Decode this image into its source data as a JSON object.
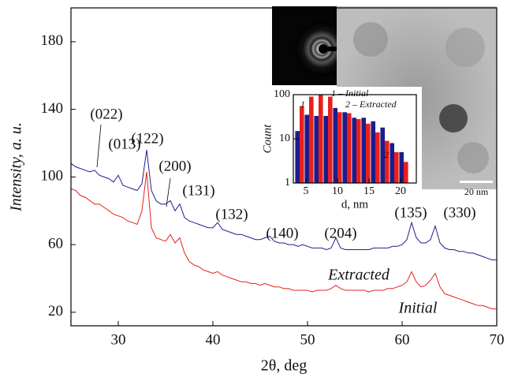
{
  "chart_data": [
    {
      "type": "line",
      "x_label": "2θ, deg",
      "y_label": "Intensity, a. u.",
      "x": [
        25,
        25.5,
        26,
        26.5,
        27,
        27.5,
        28,
        28.5,
        29,
        29.5,
        30,
        30.5,
        31,
        31.5,
        32,
        32.5,
        33,
        33.5,
        34,
        34.5,
        35,
        35.5,
        36,
        36.5,
        37,
        37.5,
        38,
        38.5,
        39,
        39.5,
        40,
        40.5,
        41,
        41.5,
        42,
        42.5,
        43,
        43.5,
        44,
        44.5,
        45,
        45.5,
        46,
        46.5,
        47,
        47.5,
        48,
        48.5,
        49,
        49.5,
        50,
        50.5,
        51,
        51.5,
        52,
        52.5,
        53,
        53.5,
        54,
        54.5,
        55,
        55.5,
        56,
        56.5,
        57,
        57.5,
        58,
        58.5,
        59,
        59.5,
        60,
        60.5,
        61,
        61.5,
        62,
        62.5,
        63,
        63.5,
        64,
        64.5,
        65,
        65.5,
        66,
        66.5,
        67,
        67.5,
        68,
        68.5,
        69,
        69.5,
        70
      ],
      "series": [
        {
          "name": "Extracted",
          "color": "#1f1f8f",
          "values": [
            108,
            106,
            105,
            104,
            103,
            104,
            101,
            100,
            99,
            97,
            101,
            95,
            94,
            93,
            92,
            96,
            116,
            92,
            86,
            84,
            84,
            86,
            80,
            84,
            76,
            74,
            73,
            72,
            71,
            70,
            70,
            73,
            69,
            68,
            67,
            66,
            66,
            65,
            64,
            63,
            63,
            64,
            65,
            62,
            61,
            61,
            60,
            60,
            59,
            60,
            59,
            58,
            58,
            58,
            57,
            58,
            64,
            58,
            57,
            57,
            57,
            57,
            57,
            57,
            58,
            58,
            58,
            58,
            59,
            59,
            60,
            63,
            73,
            64,
            61,
            61,
            63,
            71,
            61,
            58,
            57,
            57,
            56,
            56,
            55,
            55,
            54,
            53,
            52,
            51,
            51
          ]
        },
        {
          "name": "Initial",
          "color": "#e3221c",
          "values": [
            93,
            92,
            89,
            88,
            86,
            84,
            84,
            82,
            80,
            78,
            77,
            76,
            74,
            73,
            72,
            80,
            103,
            70,
            64,
            63,
            62,
            66,
            61,
            64,
            55,
            50,
            48,
            47,
            45,
            44,
            43,
            44,
            42,
            41,
            40,
            39,
            38,
            38,
            37,
            37,
            36,
            37,
            36,
            35,
            35,
            34,
            34,
            33,
            33,
            33,
            33,
            32,
            33,
            33,
            33,
            34,
            36,
            34,
            33,
            33,
            33,
            33,
            33,
            32,
            33,
            33,
            33,
            34,
            34,
            35,
            36,
            38,
            44,
            38,
            35,
            36,
            39,
            43,
            35,
            31,
            30,
            29,
            28,
            27,
            26,
            25,
            24,
            24,
            23,
            22,
            22
          ]
        }
      ],
      "annotations": [
        "(022)",
        "(013)",
        "(122)",
        "(200)",
        "(131)",
        "(132)",
        "(140)",
        "(204)",
        "(135)",
        "(330)"
      ],
      "xlim": [
        25,
        70
      ],
      "xticks": [
        30,
        40,
        50,
        60,
        70
      ],
      "ylim": [
        12,
        200
      ],
      "yticks": [
        20,
        60,
        100,
        140,
        180
      ]
    },
    {
      "type": "bar",
      "x_label": "d, nm",
      "y_label": "Count",
      "log_y": true,
      "x": [
        4,
        5.5,
        7,
        8.5,
        10,
        11.5,
        13,
        14.5,
        16,
        17.5,
        19,
        20.5
      ],
      "series": [
        {
          "name": "1 – Initial",
          "label": "1",
          "color": "#e8201c",
          "values": [
            55,
            90,
            100,
            90,
            40,
            38,
            28,
            22,
            14,
            9,
            5,
            3
          ]
        },
        {
          "name": "2 – Extracted",
          "label": "2",
          "color": "#1c1c8c",
          "values": [
            15,
            35,
            33,
            33,
            50,
            40,
            30,
            30,
            25,
            18,
            8,
            5
          ]
        }
      ],
      "xlim": [
        3,
        22.5
      ],
      "xticks": [
        5,
        10,
        15,
        20
      ],
      "ylim": [
        1,
        100
      ],
      "yticks": [
        1,
        10,
        100
      ]
    }
  ],
  "inset_image": {
    "scale_label": "20 nm"
  }
}
